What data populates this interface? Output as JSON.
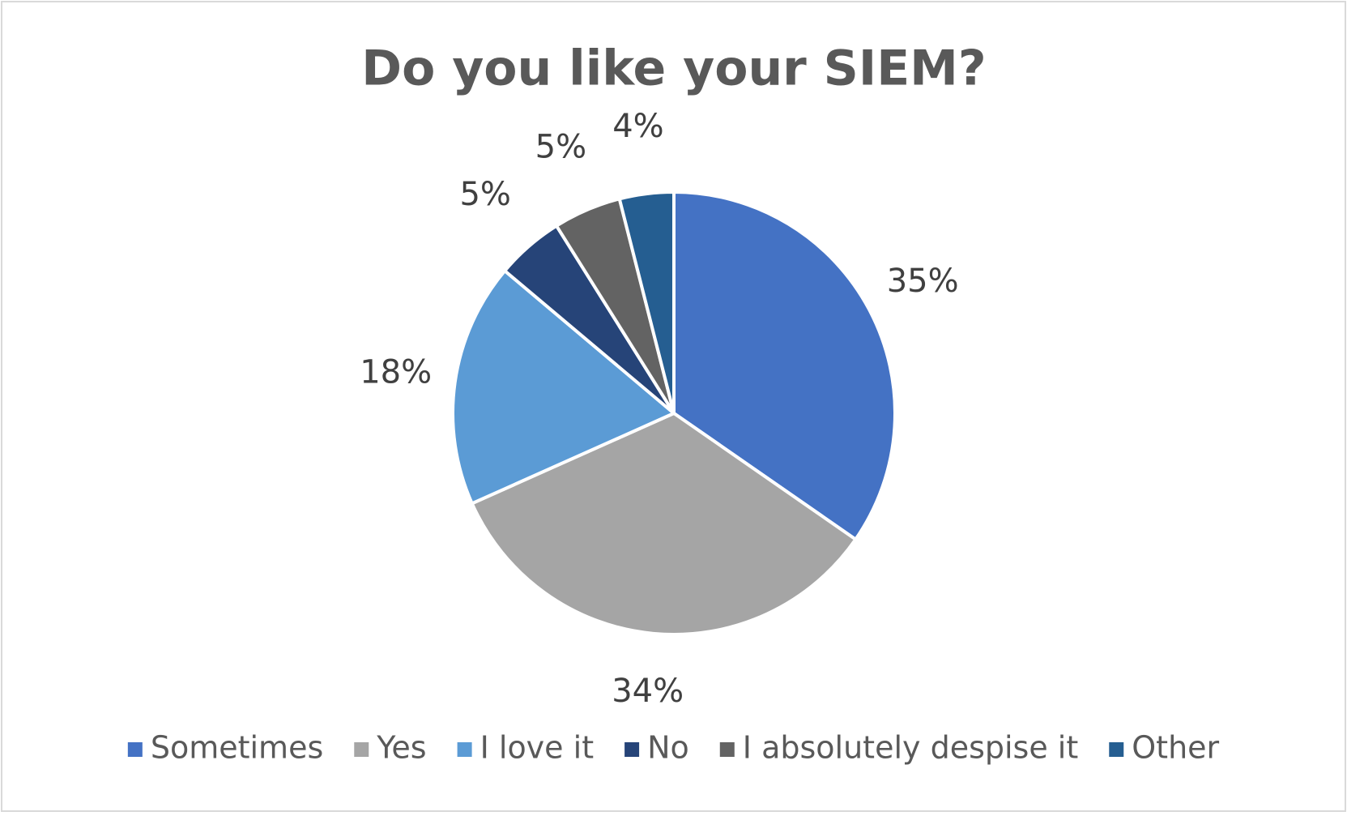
{
  "chart_data": {
    "type": "pie",
    "title": "Do you like your SIEM?",
    "categories": [
      "Sometimes",
      "Yes",
      "I love it",
      "No",
      "I absolutely despise it",
      "Other"
    ],
    "values": [
      35,
      34,
      18,
      5,
      5,
      4
    ],
    "value_labels": [
      "35%",
      "34%",
      "18%",
      "5%",
      "5%",
      "4%"
    ],
    "colors": [
      "#4472c4",
      "#a5a5a5",
      "#5b9bd5",
      "#264478",
      "#636363",
      "#255e91"
    ],
    "legend": "bottom"
  }
}
